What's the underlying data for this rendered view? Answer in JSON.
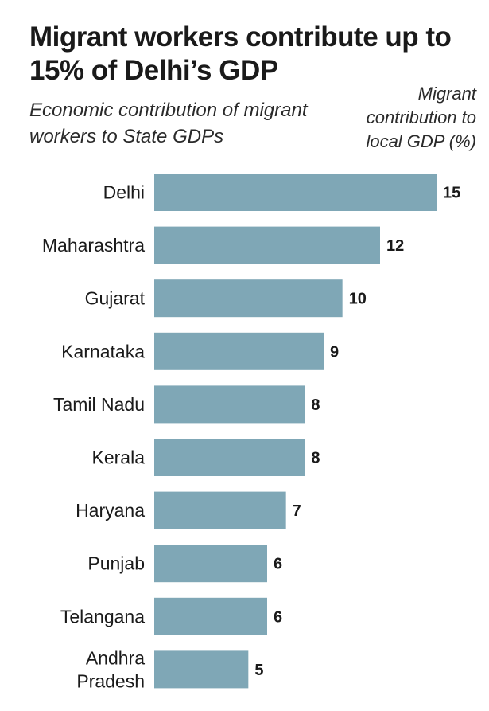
{
  "chart_data": {
    "type": "bar",
    "orientation": "horizontal",
    "title": "Migrant workers contribute up to 15% of Delhi’s GDP",
    "subtitle": "Economic contribution of migrant workers to State GDPs",
    "value_axis_label": "Migrant contribution to local GDP (%)",
    "categories": [
      "Delhi",
      "Maharashtra",
      "Gujarat",
      "Karnataka",
      "Tamil Nadu",
      "Kerala",
      "Haryana",
      "Punjab",
      "Telangana",
      "Andhra Pradesh"
    ],
    "category_lines": [
      [
        "Delhi"
      ],
      [
        "Maharashtra"
      ],
      [
        "Gujarat"
      ],
      [
        "Karnataka"
      ],
      [
        "Tamil Nadu"
      ],
      [
        "Kerala"
      ],
      [
        "Haryana"
      ],
      [
        "Punjab"
      ],
      [
        "Telangana"
      ],
      [
        "Andhra",
        "Pradesh"
      ]
    ],
    "values": [
      15,
      12,
      10,
      9,
      8,
      8,
      7,
      6,
      6,
      5
    ],
    "value_labels": [
      "15",
      "12",
      "10",
      "9",
      "8",
      "8",
      "7",
      "6",
      "6",
      "5"
    ],
    "xlim": [
      0,
      15
    ],
    "bar_color": "#7fa7b6",
    "grid": false,
    "legend": "none"
  }
}
